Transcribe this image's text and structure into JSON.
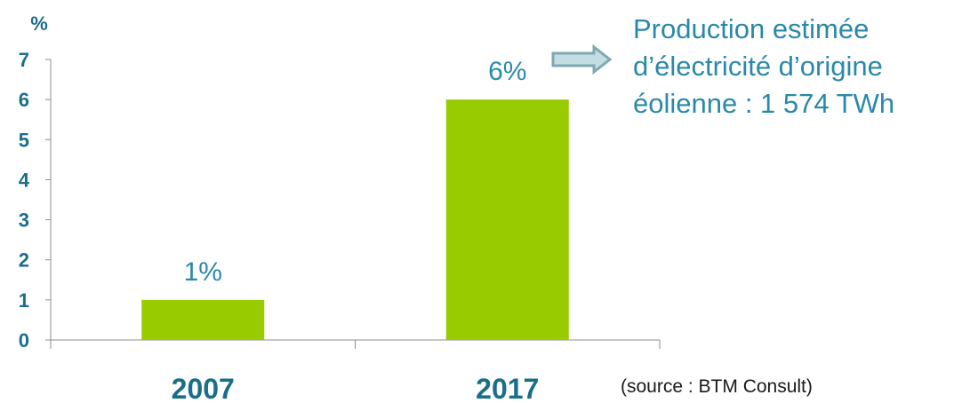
{
  "chart_data": {
    "type": "bar",
    "categories": [
      "2007",
      "2017"
    ],
    "values": [
      1,
      6
    ],
    "data_labels": [
      "1%",
      "6%"
    ],
    "ylabel": "%",
    "ylim": [
      0,
      7
    ],
    "yticks": [
      0,
      1,
      2,
      3,
      4,
      5,
      6,
      7
    ],
    "grid": false,
    "bar_color": "#99cc00",
    "axis_text_color": "#1a6e8c",
    "annotation_lines": [
      "Production estimée",
      "d’électricité d’origine",
      "éolienne : 1 574 TWh"
    ],
    "annotation_color": "#2a89a8",
    "arrow_color": "#7fa9b0"
  },
  "source": "(source : BTM Consult)"
}
